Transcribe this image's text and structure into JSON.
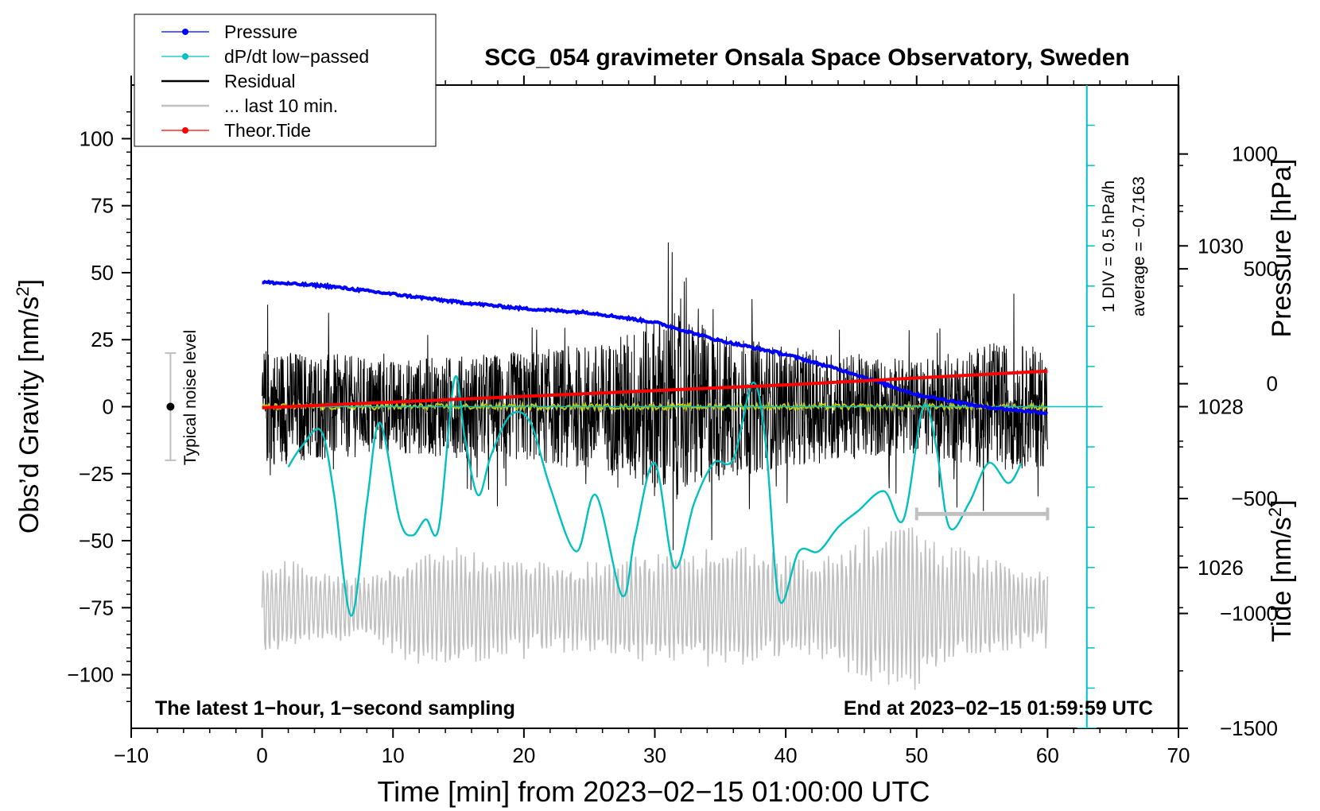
{
  "chart_data": {
    "type": "line",
    "title": "SCG_054 gravimeter Onsala Space Observatory, Sweden",
    "xlabel": "Time [min] from 2023−02−15 01:00:00 UTC",
    "ylabel_left": "Obs’d Gravity [nm/s",
    "ylabel_left_sup": "2",
    "ylabel_left_end": "]",
    "ylabel_right_pressure": "Pressure [hPa]",
    "ylabel_right_tide": "Tide [nm/s",
    "ylabel_right_tide_sup": "2",
    "ylabel_right_tide_end": "]",
    "xlim": [
      -10,
      70
    ],
    "ylim_left": [
      -120,
      120
    ],
    "pressure_axis_range": [
      1024,
      1032
    ],
    "tide_axis_range": [
      -1500,
      1300
    ],
    "x_ticks": [
      -10,
      0,
      10,
      20,
      30,
      40,
      50,
      60,
      70
    ],
    "x_tick_labels": [
      "−10",
      "0",
      "10",
      "20",
      "30",
      "40",
      "50",
      "60",
      "70"
    ],
    "y_ticks_left": [
      100,
      75,
      50,
      25,
      0,
      -25,
      -50,
      -75,
      -100
    ],
    "y_tick_labels_left": [
      "100",
      "75",
      "50",
      "25",
      "0",
      "−25",
      "−50",
      "−75",
      "−100"
    ],
    "pressure_ticks": [
      1030,
      1028,
      1026
    ],
    "pressure_tick_labels": [
      "1030",
      "1028",
      "1026"
    ],
    "tide_ticks": [
      1000,
      500,
      0,
      -500,
      -1000,
      -1500
    ],
    "tide_tick_labels": [
      "1000",
      "500",
      "0",
      "−500",
      "−1000",
      "−1500"
    ],
    "legend": [
      {
        "label": "Pressure",
        "color": "#0000ff",
        "marker": true
      },
      {
        "label": "dP/dt low−passed",
        "color": "#00c0c0",
        "marker": true
      },
      {
        "label": "Residual",
        "color": "#000000",
        "marker": false
      },
      {
        "label": "... last 10 min.",
        "color": "#c0c0c0",
        "marker": false
      },
      {
        "label": "Theor.Tide",
        "color": "#ff0000",
        "marker": true
      }
    ],
    "legend_position": "top-left",
    "annotations": {
      "bottom_left": "The latest 1−hour, 1−second sampling",
      "bottom_right": "End at 2023−02−15 01:59:59 UTC",
      "scale_div": "1 DIV = 0.5 hPa/h",
      "scale_avg": "average = −0.7163",
      "noise": "Typical noise level"
    },
    "noise_bar": {
      "x": -7,
      "center": 0,
      "half_range": 20
    },
    "last10_bracket": {
      "x_start": 50,
      "x_end": 60,
      "gravity_level": -40
    },
    "dpdt_zero_level_hpa": 1028,
    "dpdt_scale_top_hpa": 1032,
    "dpdt_scale_bottom_hpa": 1024,
    "dpdt_scale_x": 63,
    "series": [
      {
        "name": "Pressure",
        "axis": "pressure",
        "color": "#0000ff",
        "x": [
          0,
          5,
          10,
          15,
          20,
          25,
          30,
          35,
          40,
          45,
          50,
          55,
          60
        ],
        "values": [
          1029.55,
          1029.5,
          1029.4,
          1029.3,
          1029.22,
          1029.17,
          1029.05,
          1028.82,
          1028.65,
          1028.42,
          1028.15,
          1028.0,
          1027.92
        ]
      },
      {
        "name": "dP/dt low−passed",
        "axis": "pressure",
        "color": "#00c0c0",
        "x": [
          2,
          3,
          4.5,
          5.5,
          6.8,
          8,
          9,
          10.5,
          11.5,
          12.5,
          13.5,
          14.7,
          15.5,
          16.5,
          17.5,
          19,
          20.5,
          22,
          24,
          25.5,
          27.5,
          28.5,
          30,
          31.5,
          33,
          34.5,
          36,
          37.5,
          38.5,
          39.5,
          41,
          42.5,
          44,
          45.5,
          47.5,
          49,
          50.5,
          51.5,
          52.5,
          54,
          55.5,
          57,
          58
        ],
        "values": [
          1027.25,
          1027.5,
          1027.7,
          1026.9,
          1025.4,
          1026.8,
          1027.8,
          1026.6,
          1026.4,
          1026.6,
          1026.5,
          1028.35,
          1027.6,
          1026.9,
          1027.4,
          1027.9,
          1027.8,
          1027.0,
          1026.2,
          1026.9,
          1025.65,
          1026.4,
          1027.3,
          1026.0,
          1026.8,
          1027.3,
          1027.35,
          1028.3,
          1027.5,
          1025.6,
          1026.2,
          1026.2,
          1026.5,
          1026.7,
          1026.95,
          1026.6,
          1028.0,
          1027.5,
          1026.5,
          1026.8,
          1027.3,
          1027.05,
          1027.3
        ]
      },
      {
        "name": "Residual",
        "axis": "gravity",
        "color": "#000000",
        "x_range": [
          0,
          60
        ],
        "amplitude_envelope": [
          {
            "x": 0,
            "amp": 28
          },
          {
            "x": 10,
            "amp": 22
          },
          {
            "x": 20,
            "amp": 26
          },
          {
            "x": 26,
            "amp": 30
          },
          {
            "x": 31,
            "amp": 45
          },
          {
            "x": 35,
            "amp": 35
          },
          {
            "x": 40,
            "amp": 28
          },
          {
            "x": 50,
            "amp": 22
          },
          {
            "x": 56,
            "amp": 30
          },
          {
            "x": 60,
            "amp": 28
          }
        ]
      },
      {
        "name": "Residual smoothed",
        "axis": "gravity",
        "color": "#c8c800",
        "x_range": [
          0,
          60
        ],
        "level": 0
      },
      {
        "name": "... last 10 min.",
        "axis": "gravity",
        "color": "#c0c0c0",
        "x_range": [
          0,
          60
        ],
        "center": -75,
        "amplitude_envelope": [
          {
            "x": 0,
            "amp": 20
          },
          {
            "x": 8,
            "amp": 12
          },
          {
            "x": 12,
            "amp": 25
          },
          {
            "x": 22,
            "amp": 18
          },
          {
            "x": 30,
            "amp": 22
          },
          {
            "x": 36,
            "amp": 25
          },
          {
            "x": 42,
            "amp": 18
          },
          {
            "x": 49,
            "amp": 40
          },
          {
            "x": 52,
            "amp": 25
          },
          {
            "x": 60,
            "amp": 15
          }
        ]
      },
      {
        "name": "Theor.Tide",
        "axis": "tide",
        "color": "#ff0000",
        "x": [
          0,
          10,
          20,
          30,
          40,
          50,
          60
        ],
        "values": [
          -105,
          -80,
          -55,
          -30,
          -5,
          25,
          55
        ]
      }
    ]
  }
}
